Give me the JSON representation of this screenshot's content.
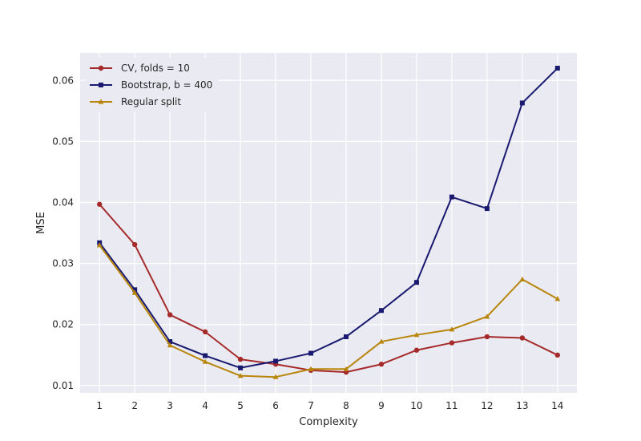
{
  "chart_data": {
    "type": "line",
    "title": "",
    "xlabel": "Complexity",
    "ylabel": "MSE",
    "x": [
      1,
      2,
      3,
      4,
      5,
      6,
      7,
      8,
      9,
      10,
      11,
      12,
      13,
      14
    ],
    "xlim": [
      0.45,
      14.55
    ],
    "ylim": [
      0.0088,
      0.0645
    ],
    "xticks": [
      "1",
      "2",
      "3",
      "4",
      "5",
      "6",
      "7",
      "8",
      "9",
      "10",
      "11",
      "12",
      "13",
      "14"
    ],
    "yticks": [
      0.01,
      0.02,
      0.03,
      0.04,
      0.05,
      0.06
    ],
    "ytick_labels": [
      "0.01",
      "0.02",
      "0.03",
      "0.04",
      "0.05",
      "0.06"
    ],
    "grid": true,
    "legend_position": "top-left",
    "background": "#eaeaf2",
    "series": [
      {
        "name": "CV, folds = 10",
        "color": "#a52a2a",
        "marker": "circle",
        "values": [
          0.0397,
          0.0331,
          0.0216,
          0.0188,
          0.0143,
          0.0135,
          0.0125,
          0.0122,
          0.0135,
          0.0158,
          0.017,
          0.018,
          0.0178,
          0.015
        ]
      },
      {
        "name": "Bootstrap, b = 400",
        "color": "#191970",
        "marker": "square",
        "values": [
          0.0334,
          0.0257,
          0.0172,
          0.0149,
          0.0129,
          0.014,
          0.0153,
          0.018,
          0.0223,
          0.0269,
          0.0409,
          0.039,
          0.0563,
          0.062
        ]
      },
      {
        "name": "Regular split",
        "color": "#b8860b",
        "marker": "triangle",
        "values": [
          0.033,
          0.0252,
          0.0166,
          0.0139,
          0.0116,
          0.0114,
          0.0127,
          0.0127,
          0.0172,
          0.0183,
          0.0192,
          0.0213,
          0.0274,
          0.0242
        ]
      }
    ]
  }
}
